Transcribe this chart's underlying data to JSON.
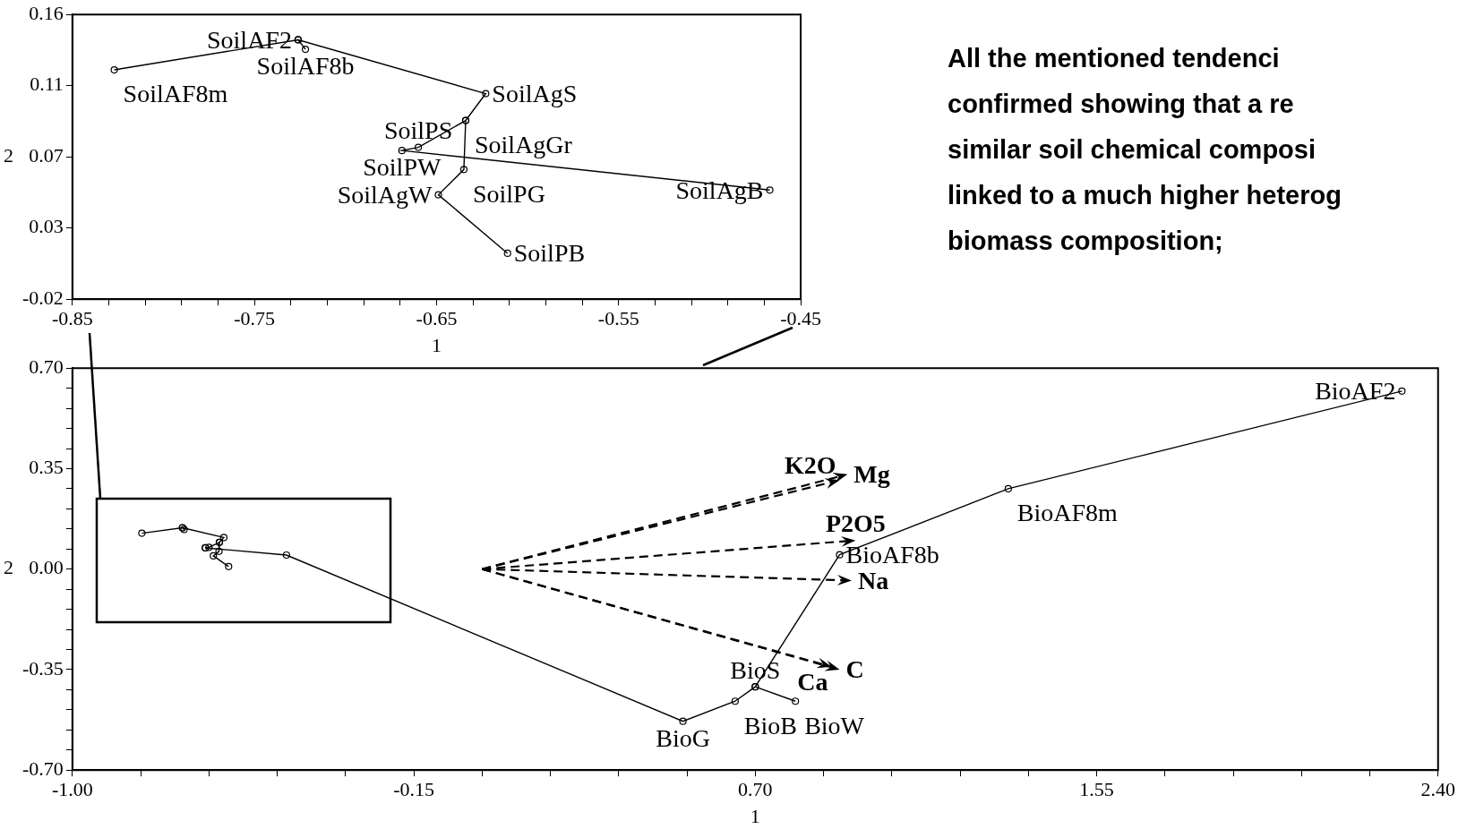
{
  "chart_data": [
    {
      "type": "line",
      "xlabel": "1",
      "ylabel": "2",
      "xlim": [
        -0.85,
        -0.45
      ],
      "ylim": [
        -0.02,
        0.16
      ],
      "xticks": [
        -0.85,
        {
          "value": -0.83,
          "label": null
        },
        {
          "value": -0.81,
          "label": null
        },
        {
          "value": -0.79,
          "label": null
        },
        {
          "value": -0.77,
          "label": null
        },
        -0.75,
        {
          "value": -0.73,
          "label": null
        },
        {
          "value": -0.71,
          "label": null
        },
        {
          "value": -0.69,
          "label": null
        },
        {
          "value": -0.67,
          "label": null
        },
        -0.65,
        {
          "value": -0.63,
          "label": null
        },
        {
          "value": -0.61,
          "label": null
        },
        {
          "value": -0.59,
          "label": null
        },
        {
          "value": -0.57,
          "label": null
        },
        -0.55,
        {
          "value": -0.53,
          "label": null
        },
        {
          "value": -0.51,
          "label": null
        },
        {
          "value": -0.49,
          "label": null
        },
        {
          "value": -0.47,
          "label": null
        },
        -0.45
      ],
      "yticks": [
        -0.02,
        {
          "value": 0.025,
          "label": "0.03"
        },
        0.07,
        {
          "value": 0.115,
          "label": "0.11"
        },
        0.16
      ],
      "marker": "circle",
      "line_style": "solid",
      "series": [
        {
          "color": "#000000",
          "x": [
            -0.827,
            -0.726,
            -0.623,
            -0.634,
            -0.635,
            -0.649,
            -0.611
          ],
          "values": [
            0.125,
            0.144,
            0.11,
            0.093,
            0.062,
            0.046,
            0.009
          ]
        },
        {
          "color": "#000000",
          "x": [
            -0.726,
            -0.722
          ],
          "values": [
            0.144,
            0.138
          ]
        },
        {
          "color": "#000000",
          "x": [
            -0.634,
            -0.66,
            -0.669,
            -0.467
          ],
          "values": [
            0.093,
            0.076,
            0.074,
            0.049
          ]
        }
      ],
      "annotations": [
        {
          "text": "SoilAF8m",
          "x": -0.827,
          "y": 0.125
        },
        {
          "text": "SoilAF2",
          "x": -0.726,
          "y": 0.144
        },
        {
          "text": "SoilAF8b",
          "x": -0.722,
          "y": 0.138
        },
        {
          "text": "SoilAgS",
          "x": -0.623,
          "y": 0.11
        },
        {
          "text": "SoilAgGr",
          "x": -0.634,
          "y": 0.093
        },
        {
          "text": "SoilPS",
          "x": -0.66,
          "y": 0.076
        },
        {
          "text": "SoilPW",
          "x": -0.669,
          "y": 0.074
        },
        {
          "text": "SoilPG",
          "x": -0.635,
          "y": 0.062
        },
        {
          "text": "SoilAgW",
          "x": -0.649,
          "y": 0.046
        },
        {
          "text": "SoilPB",
          "x": -0.611,
          "y": 0.009
        },
        {
          "text": "SoilAgB",
          "x": -0.467,
          "y": 0.049
        }
      ]
    },
    {
      "type": "line",
      "xlabel": "1",
      "ylabel": "2",
      "xlim": [
        -1.0,
        2.4
      ],
      "ylim": [
        -0.7,
        0.7
      ],
      "xticks": [
        {
          "value": -1.0,
          "label": "-1.00"
        },
        {
          "value": -0.83,
          "label": null
        },
        {
          "value": -0.66,
          "label": null
        },
        {
          "value": -0.49,
          "label": null
        },
        {
          "value": -0.32,
          "label": null
        },
        -0.15,
        {
          "value": 0.02,
          "label": null
        },
        {
          "value": 0.19,
          "label": null
        },
        {
          "value": 0.36,
          "label": null
        },
        {
          "value": 0.53,
          "label": null
        },
        {
          "value": 0.7,
          "label": "0.70"
        },
        {
          "value": 0.87,
          "label": null
        },
        {
          "value": 1.04,
          "label": null
        },
        {
          "value": 1.21,
          "label": null
        },
        {
          "value": 1.38,
          "label": null
        },
        1.55,
        {
          "value": 1.72,
          "label": null
        },
        {
          "value": 1.89,
          "label": null
        },
        {
          "value": 2.06,
          "label": null
        },
        {
          "value": 2.23,
          "label": null
        },
        {
          "value": 2.4,
          "label": "2.40"
        }
      ],
      "yticks": [
        {
          "value": -0.7,
          "label": "-0.70"
        },
        {
          "value": -0.63,
          "label": null
        },
        {
          "value": -0.56,
          "label": null
        },
        {
          "value": -0.49,
          "label": null
        },
        {
          "value": -0.42,
          "label": null
        },
        -0.35,
        {
          "value": -0.28,
          "label": null
        },
        {
          "value": -0.21,
          "label": null
        },
        {
          "value": -0.14,
          "label": null
        },
        {
          "value": -0.07,
          "label": null
        },
        {
          "value": 0,
          "label": "0.00"
        },
        {
          "value": 0.07,
          "label": null
        },
        {
          "value": 0.14,
          "label": null
        },
        {
          "value": 0.21,
          "label": null
        },
        {
          "value": 0.28,
          "label": null
        },
        0.35,
        {
          "value": 0.42,
          "label": null
        },
        {
          "value": 0.49,
          "label": null
        },
        {
          "value": 0.56,
          "label": null
        },
        {
          "value": 0.63,
          "label": null
        },
        {
          "value": 0.7,
          "label": "0.70"
        }
      ],
      "marker": "circle",
      "line_style": "solid",
      "series": [
        {
          "color": "#000000",
          "x": [
            -0.827,
            -0.726,
            -0.722,
            -0.726,
            -0.623,
            -0.634,
            -0.635,
            -0.649,
            -0.611
          ],
          "values": [
            0.125,
            0.144,
            0.138,
            0.144,
            0.11,
            0.093,
            0.062,
            0.046,
            0.009
          ]
        },
        {
          "color": "#000000",
          "x": [
            -0.669,
            -0.66,
            -0.634
          ],
          "values": [
            0.074,
            0.076,
            0.093
          ]
        },
        {
          "color": "#000000",
          "x": [
            -0.669,
            -0.467,
            0.52,
            0.65,
            0.7,
            0.91,
            1.33,
            2.31
          ],
          "values": [
            0.074,
            0.049,
            -0.53,
            -0.46,
            -0.41,
            0.05,
            0.28,
            0.62
          ]
        },
        {
          "color": "#000000",
          "x": [
            0.7,
            0.8
          ],
          "values": [
            -0.41,
            -0.46
          ]
        }
      ],
      "annotations": [
        "Mg",
        "K2O",
        "P2O5",
        "Na",
        "C",
        "Ca",
        {
          "text": "BioG",
          "x": 0.52,
          "y": -0.53
        },
        {
          "text": "BioB",
          "x": 0.65,
          "y": -0.46
        },
        {
          "text": "BioS",
          "x": 0.7,
          "y": -0.41
        },
        {
          "text": "BioW",
          "x": 0.8,
          "y": -0.46
        },
        {
          "text": "BioAF8b",
          "x": 0.91,
          "y": 0.05
        },
        {
          "text": "BioAF8m",
          "x": 1.33,
          "y": 0.28
        },
        {
          "text": "BioAF2",
          "x": 2.31,
          "y": 0.62
        }
      ]
    },
    {
      "type": "other",
      "annotations": [
        "All the mentioned tendenci",
        "confirmed showing that a re",
        "similar soil chemical composi",
        "linked to a much higher heterog",
        "biomass composition;"
      ]
    }
  ]
}
